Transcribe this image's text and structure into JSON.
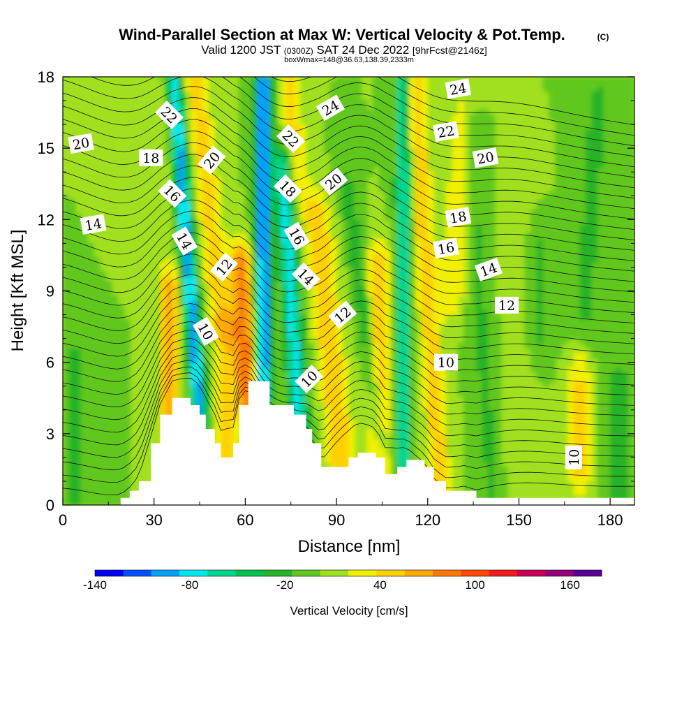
{
  "chart_data": {
    "type": "heatmap",
    "title": "Wind-Parallel Section at Max W: Vertical Velocity & Pot.Temp.",
    "title_mark": "(C)",
    "subtitle_pre": "Valid 1200 JST",
    "subtitle_utc": "(0300Z)",
    "subtitle_post": "SAT 24 Dec 2022",
    "subtitle_fcst": "[9hrFcst@2146z]",
    "subtitle_line2": "boxWmax=148@36.63,138.39,2333m",
    "xlabel": "Distance [nm]",
    "ylabel": "Height [Kft MSL]",
    "xlim": [
      0,
      188
    ],
    "ylim": [
      0,
      18
    ],
    "xticks": [
      "0",
      "30",
      "60",
      "90",
      "120",
      "150",
      "180"
    ],
    "yticks": [
      "0",
      "3",
      "6",
      "9",
      "12",
      "15",
      "18"
    ],
    "colorbar": {
      "label": "Vertical Velocity [cm/s]",
      "range": [
        -140,
        180
      ],
      "step": 20,
      "tick_labels": [
        "-140",
        "-80",
        "-20",
        "40",
        "100",
        "160"
      ],
      "colors": [
        "#0000f0",
        "#0050ff",
        "#00a0ff",
        "#00e8ee",
        "#00d68f",
        "#00c050",
        "#28b428",
        "#60c81e",
        "#a0e01e",
        "#f0f000",
        "#ffd000",
        "#ffaa00",
        "#ff7800",
        "#ff4800",
        "#f01e1e",
        "#c8005a",
        "#960078",
        "#5a0096"
      ]
    },
    "theta_contour_labels": [
      {
        "label": "10",
        "x": 47,
        "y": 7.3,
        "rot": 60
      },
      {
        "label": "10",
        "x": 81,
        "y": 5.3,
        "rot": -45
      },
      {
        "label": "10",
        "x": 126,
        "y": 6.0,
        "rot": 0
      },
      {
        "label": "10",
        "x": 168,
        "y": 2.0,
        "rot": -90
      },
      {
        "label": "12",
        "x": 53,
        "y": 10.0,
        "rot": -50
      },
      {
        "label": "12",
        "x": 92,
        "y": 8.0,
        "rot": -40
      },
      {
        "label": "12",
        "x": 146,
        "y": 8.4,
        "rot": 0
      },
      {
        "label": "14",
        "x": 10,
        "y": 11.8,
        "rot": -10
      },
      {
        "label": "14",
        "x": 40,
        "y": 11.1,
        "rot": 60
      },
      {
        "label": "14",
        "x": 80,
        "y": 9.6,
        "rot": 45
      },
      {
        "label": "14",
        "x": 140,
        "y": 9.9,
        "rot": -20
      },
      {
        "label": "16",
        "x": 36,
        "y": 13.1,
        "rot": 45
      },
      {
        "label": "16",
        "x": 77,
        "y": 11.3,
        "rot": 60
      },
      {
        "label": "16",
        "x": 126,
        "y": 10.8,
        "rot": -10
      },
      {
        "label": "18",
        "x": 29,
        "y": 14.6,
        "rot": 0
      },
      {
        "label": "18",
        "x": 74,
        "y": 13.3,
        "rot": 45
      },
      {
        "label": "18",
        "x": 130,
        "y": 12.1,
        "rot": -10
      },
      {
        "label": "20",
        "x": 6,
        "y": 15.2,
        "rot": -10
      },
      {
        "label": "20",
        "x": 49,
        "y": 14.5,
        "rot": -50
      },
      {
        "label": "20",
        "x": 89,
        "y": 13.6,
        "rot": -40
      },
      {
        "label": "20",
        "x": 139,
        "y": 14.6,
        "rot": -10
      },
      {
        "label": "22",
        "x": 35,
        "y": 16.4,
        "rot": 45
      },
      {
        "label": "22",
        "x": 75,
        "y": 15.4,
        "rot": 45
      },
      {
        "label": "22",
        "x": 126,
        "y": 15.7,
        "rot": -10
      },
      {
        "label": "24",
        "x": 88,
        "y": 16.7,
        "rot": -30
      },
      {
        "label": "24",
        "x": 130,
        "y": 17.5,
        "rot": -10
      }
    ],
    "terrain": [
      {
        "x": 0,
        "h": 0
      },
      {
        "x": 19,
        "h": 0.3
      },
      {
        "x": 22,
        "h": 0.6
      },
      {
        "x": 25,
        "h": 1.0
      },
      {
        "x": 29,
        "h": 2.6
      },
      {
        "x": 32,
        "h": 3.8
      },
      {
        "x": 36,
        "h": 4.5
      },
      {
        "x": 42,
        "h": 4.2
      },
      {
        "x": 45,
        "h": 3.8
      },
      {
        "x": 47,
        "h": 3.2
      },
      {
        "x": 50,
        "h": 2.6
      },
      {
        "x": 52,
        "h": 2.0
      },
      {
        "x": 56,
        "h": 2.6
      },
      {
        "x": 58,
        "h": 4.2
      },
      {
        "x": 61,
        "h": 5.2
      },
      {
        "x": 68,
        "h": 4.2
      },
      {
        "x": 76,
        "h": 3.8
      },
      {
        "x": 80,
        "h": 3.2
      },
      {
        "x": 82,
        "h": 2.6
      },
      {
        "x": 85,
        "h": 1.6
      },
      {
        "x": 94,
        "h": 2.0
      },
      {
        "x": 97,
        "h": 2.2
      },
      {
        "x": 103,
        "h": 2.0
      },
      {
        "x": 106,
        "h": 1.3
      },
      {
        "x": 110,
        "h": 1.6
      },
      {
        "x": 113,
        "h": 1.9
      },
      {
        "x": 119,
        "h": 1.6
      },
      {
        "x": 122,
        "h": 1.0
      },
      {
        "x": 126,
        "h": 0.6
      },
      {
        "x": 132,
        "h": 0.6
      },
      {
        "x": 136,
        "h": 0.3
      },
      {
        "x": 140,
        "h": 0.3
      },
      {
        "x": 188,
        "h": 0.3
      }
    ]
  }
}
